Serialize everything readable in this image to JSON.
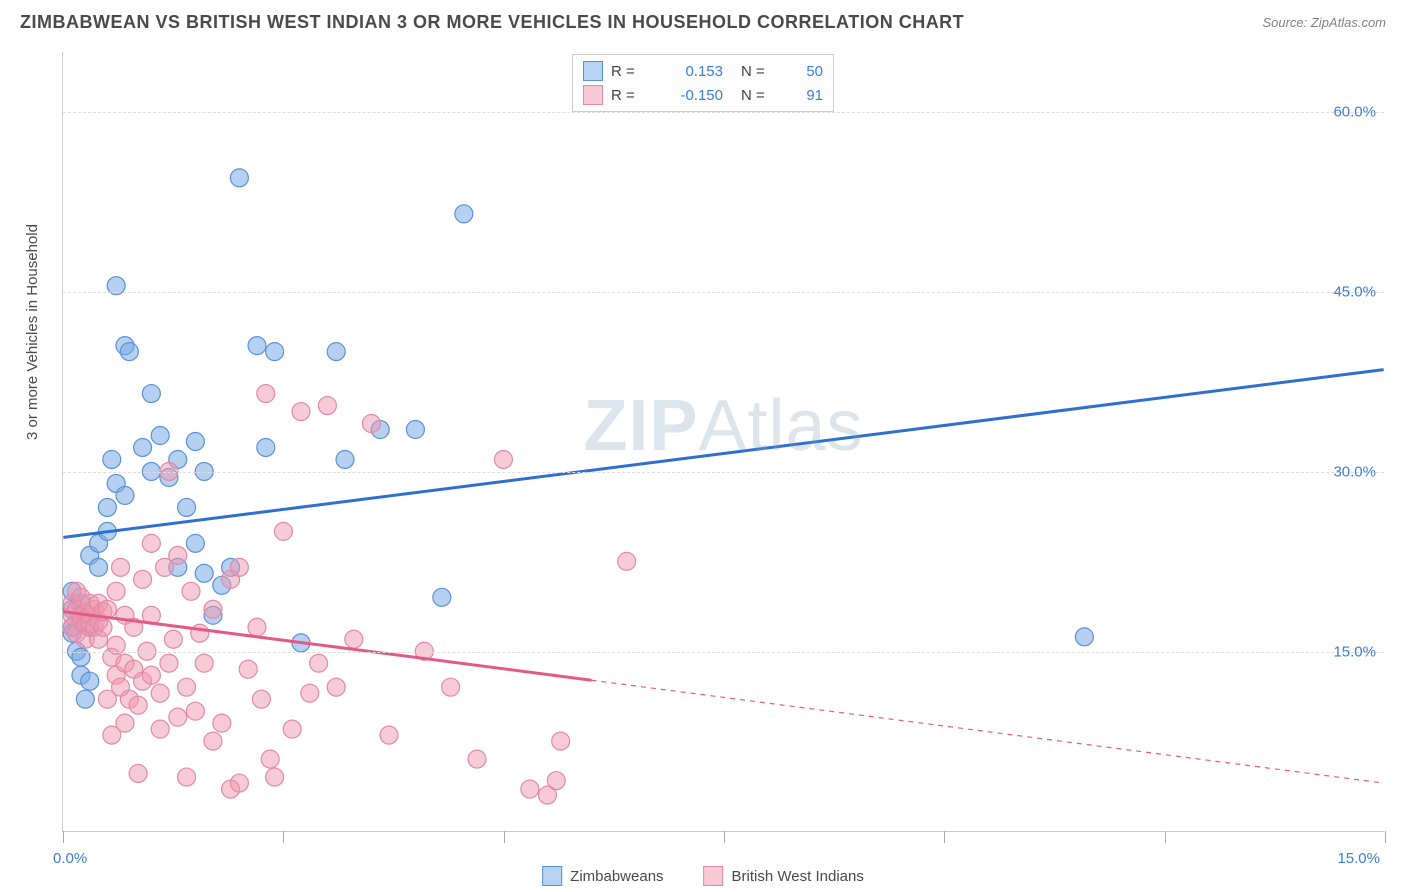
{
  "header": {
    "title": "ZIMBABWEAN VS BRITISH WEST INDIAN 3 OR MORE VEHICLES IN HOUSEHOLD CORRELATION CHART",
    "source": "Source: ZipAtlas.com"
  },
  "chart": {
    "type": "scatter",
    "y_axis_title": "3 or more Vehicles in Household",
    "background_color": "#ffffff",
    "grid_color": "#dddddd",
    "axis_color": "#cccccc",
    "xlim": [
      0,
      15
    ],
    "ylim": [
      0,
      65
    ],
    "x_tick_step": 2.5,
    "x_labels": {
      "min": "0.0%",
      "max": "15.0%"
    },
    "y_ticks": [
      {
        "v": 15,
        "label": "15.0%"
      },
      {
        "v": 30,
        "label": "30.0%"
      },
      {
        "v": 45,
        "label": "45.0%"
      },
      {
        "v": 60,
        "label": "60.0%"
      }
    ],
    "watermark": {
      "bold": "ZIP",
      "rest": "Atlas"
    },
    "series": [
      {
        "id": "zimbabweans",
        "label": "Zimbabweans",
        "marker_fill": "rgba(120,170,230,0.55)",
        "marker_stroke": "#5b92d4",
        "marker_radius": 9,
        "line_color": "#2e6fd0",
        "line_width": 3,
        "R": "0.153",
        "N": "50",
        "trend": {
          "x1": 0,
          "y1": 24.5,
          "x2": 15,
          "y2": 38.5,
          "solid_until_x": 15
        },
        "points": [
          [
            0.1,
            17
          ],
          [
            0.1,
            18.5
          ],
          [
            0.1,
            20
          ],
          [
            0.1,
            16.5
          ],
          [
            0.15,
            15
          ],
          [
            0.2,
            14.5
          ],
          [
            0.2,
            13
          ],
          [
            0.3,
            12.5
          ],
          [
            0.2,
            19
          ],
          [
            0.3,
            18
          ],
          [
            0.3,
            17
          ],
          [
            0.3,
            23
          ],
          [
            0.4,
            22
          ],
          [
            0.4,
            24
          ],
          [
            0.5,
            25
          ],
          [
            0.5,
            27
          ],
          [
            0.55,
            31
          ],
          [
            0.6,
            29
          ],
          [
            0.7,
            28
          ],
          [
            0.7,
            40.5
          ],
          [
            0.6,
            45.5
          ],
          [
            0.75,
            40
          ],
          [
            0.9,
            32
          ],
          [
            1.0,
            36.5
          ],
          [
            1.0,
            30
          ],
          [
            1.1,
            33
          ],
          [
            1.2,
            29.5
          ],
          [
            1.3,
            31
          ],
          [
            1.3,
            22
          ],
          [
            1.4,
            27
          ],
          [
            1.5,
            24
          ],
          [
            1.6,
            21.5
          ],
          [
            1.6,
            30
          ],
          [
            1.5,
            32.5
          ],
          [
            1.7,
            18
          ],
          [
            1.8,
            20.5
          ],
          [
            1.9,
            22
          ],
          [
            2.0,
            54.5
          ],
          [
            2.2,
            40.5
          ],
          [
            2.3,
            32
          ],
          [
            2.4,
            40
          ],
          [
            2.7,
            15.7
          ],
          [
            3.1,
            40
          ],
          [
            3.2,
            31
          ],
          [
            3.6,
            33.5
          ],
          [
            4.0,
            33.5
          ],
          [
            4.55,
            51.5
          ],
          [
            4.3,
            19.5
          ],
          [
            11.6,
            16.2
          ],
          [
            0.25,
            11
          ]
        ]
      },
      {
        "id": "british_west_indians",
        "label": "British West Indians",
        "marker_fill": "rgba(240,150,175,0.50)",
        "marker_stroke": "#e08aa5",
        "marker_radius": 9,
        "line_color": "#e45a87",
        "line_width": 3,
        "R": "-0.150",
        "N": "91",
        "trend": {
          "x1": 0,
          "y1": 18.3,
          "x2": 15,
          "y2": 4.0,
          "solid_until_x": 6.0
        },
        "points": [
          [
            0.1,
            18
          ],
          [
            0.1,
            17
          ],
          [
            0.1,
            19
          ],
          [
            0.15,
            18.5
          ],
          [
            0.15,
            20
          ],
          [
            0.15,
            16.5
          ],
          [
            0.2,
            17.5
          ],
          [
            0.2,
            18
          ],
          [
            0.2,
            19.5
          ],
          [
            0.25,
            18.2
          ],
          [
            0.25,
            17.2
          ],
          [
            0.25,
            16
          ],
          [
            0.3,
            18
          ],
          [
            0.3,
            17.3
          ],
          [
            0.3,
            19
          ],
          [
            0.35,
            18.5
          ],
          [
            0.35,
            17
          ],
          [
            0.4,
            19
          ],
          [
            0.4,
            17.5
          ],
          [
            0.4,
            16
          ],
          [
            0.45,
            17
          ],
          [
            0.45,
            18.3
          ],
          [
            0.5,
            18.5
          ],
          [
            0.5,
            11
          ],
          [
            0.55,
            8
          ],
          [
            0.55,
            14.5
          ],
          [
            0.6,
            13
          ],
          [
            0.6,
            20
          ],
          [
            0.6,
            15.5
          ],
          [
            0.65,
            12
          ],
          [
            0.65,
            22
          ],
          [
            0.7,
            18
          ],
          [
            0.7,
            14
          ],
          [
            0.7,
            9
          ],
          [
            0.75,
            11
          ],
          [
            0.8,
            13.5
          ],
          [
            0.8,
            17
          ],
          [
            0.85,
            10.5
          ],
          [
            0.85,
            4.8
          ],
          [
            0.9,
            12.5
          ],
          [
            0.9,
            21
          ],
          [
            0.95,
            15
          ],
          [
            1.0,
            13
          ],
          [
            1.0,
            18
          ],
          [
            1.0,
            24
          ],
          [
            1.1,
            11.5
          ],
          [
            1.1,
            8.5
          ],
          [
            1.15,
            22
          ],
          [
            1.2,
            30
          ],
          [
            1.2,
            14
          ],
          [
            1.25,
            16
          ],
          [
            1.3,
            9.5
          ],
          [
            1.3,
            23
          ],
          [
            1.4,
            12
          ],
          [
            1.4,
            4.5
          ],
          [
            1.45,
            20
          ],
          [
            1.5,
            10
          ],
          [
            1.55,
            16.5
          ],
          [
            1.6,
            14
          ],
          [
            1.7,
            7.5
          ],
          [
            1.7,
            18.5
          ],
          [
            1.8,
            9
          ],
          [
            1.9,
            21
          ],
          [
            1.9,
            3.5
          ],
          [
            2.0,
            22
          ],
          [
            2.0,
            4
          ],
          [
            2.1,
            13.5
          ],
          [
            2.2,
            17
          ],
          [
            2.25,
            11
          ],
          [
            2.3,
            36.5
          ],
          [
            2.35,
            6
          ],
          [
            2.4,
            4.5
          ],
          [
            2.5,
            25
          ],
          [
            2.6,
            8.5
          ],
          [
            2.7,
            35
          ],
          [
            2.8,
            11.5
          ],
          [
            2.9,
            14
          ],
          [
            3.0,
            35.5
          ],
          [
            3.1,
            12
          ],
          [
            3.3,
            16
          ],
          [
            3.5,
            34
          ],
          [
            3.7,
            8
          ],
          [
            4.1,
            15
          ],
          [
            4.4,
            12
          ],
          [
            4.7,
            6
          ],
          [
            5.0,
            31
          ],
          [
            5.3,
            3.5
          ],
          [
            5.5,
            3
          ],
          [
            5.6,
            4.2
          ],
          [
            5.65,
            7.5
          ],
          [
            6.4,
            22.5
          ]
        ]
      }
    ],
    "legend_swatches": {
      "blue": {
        "fill": "#b8d2f2",
        "stroke": "#5b92d4"
      },
      "pink": {
        "fill": "#f7c8d6",
        "stroke": "#e08aa5"
      }
    }
  }
}
